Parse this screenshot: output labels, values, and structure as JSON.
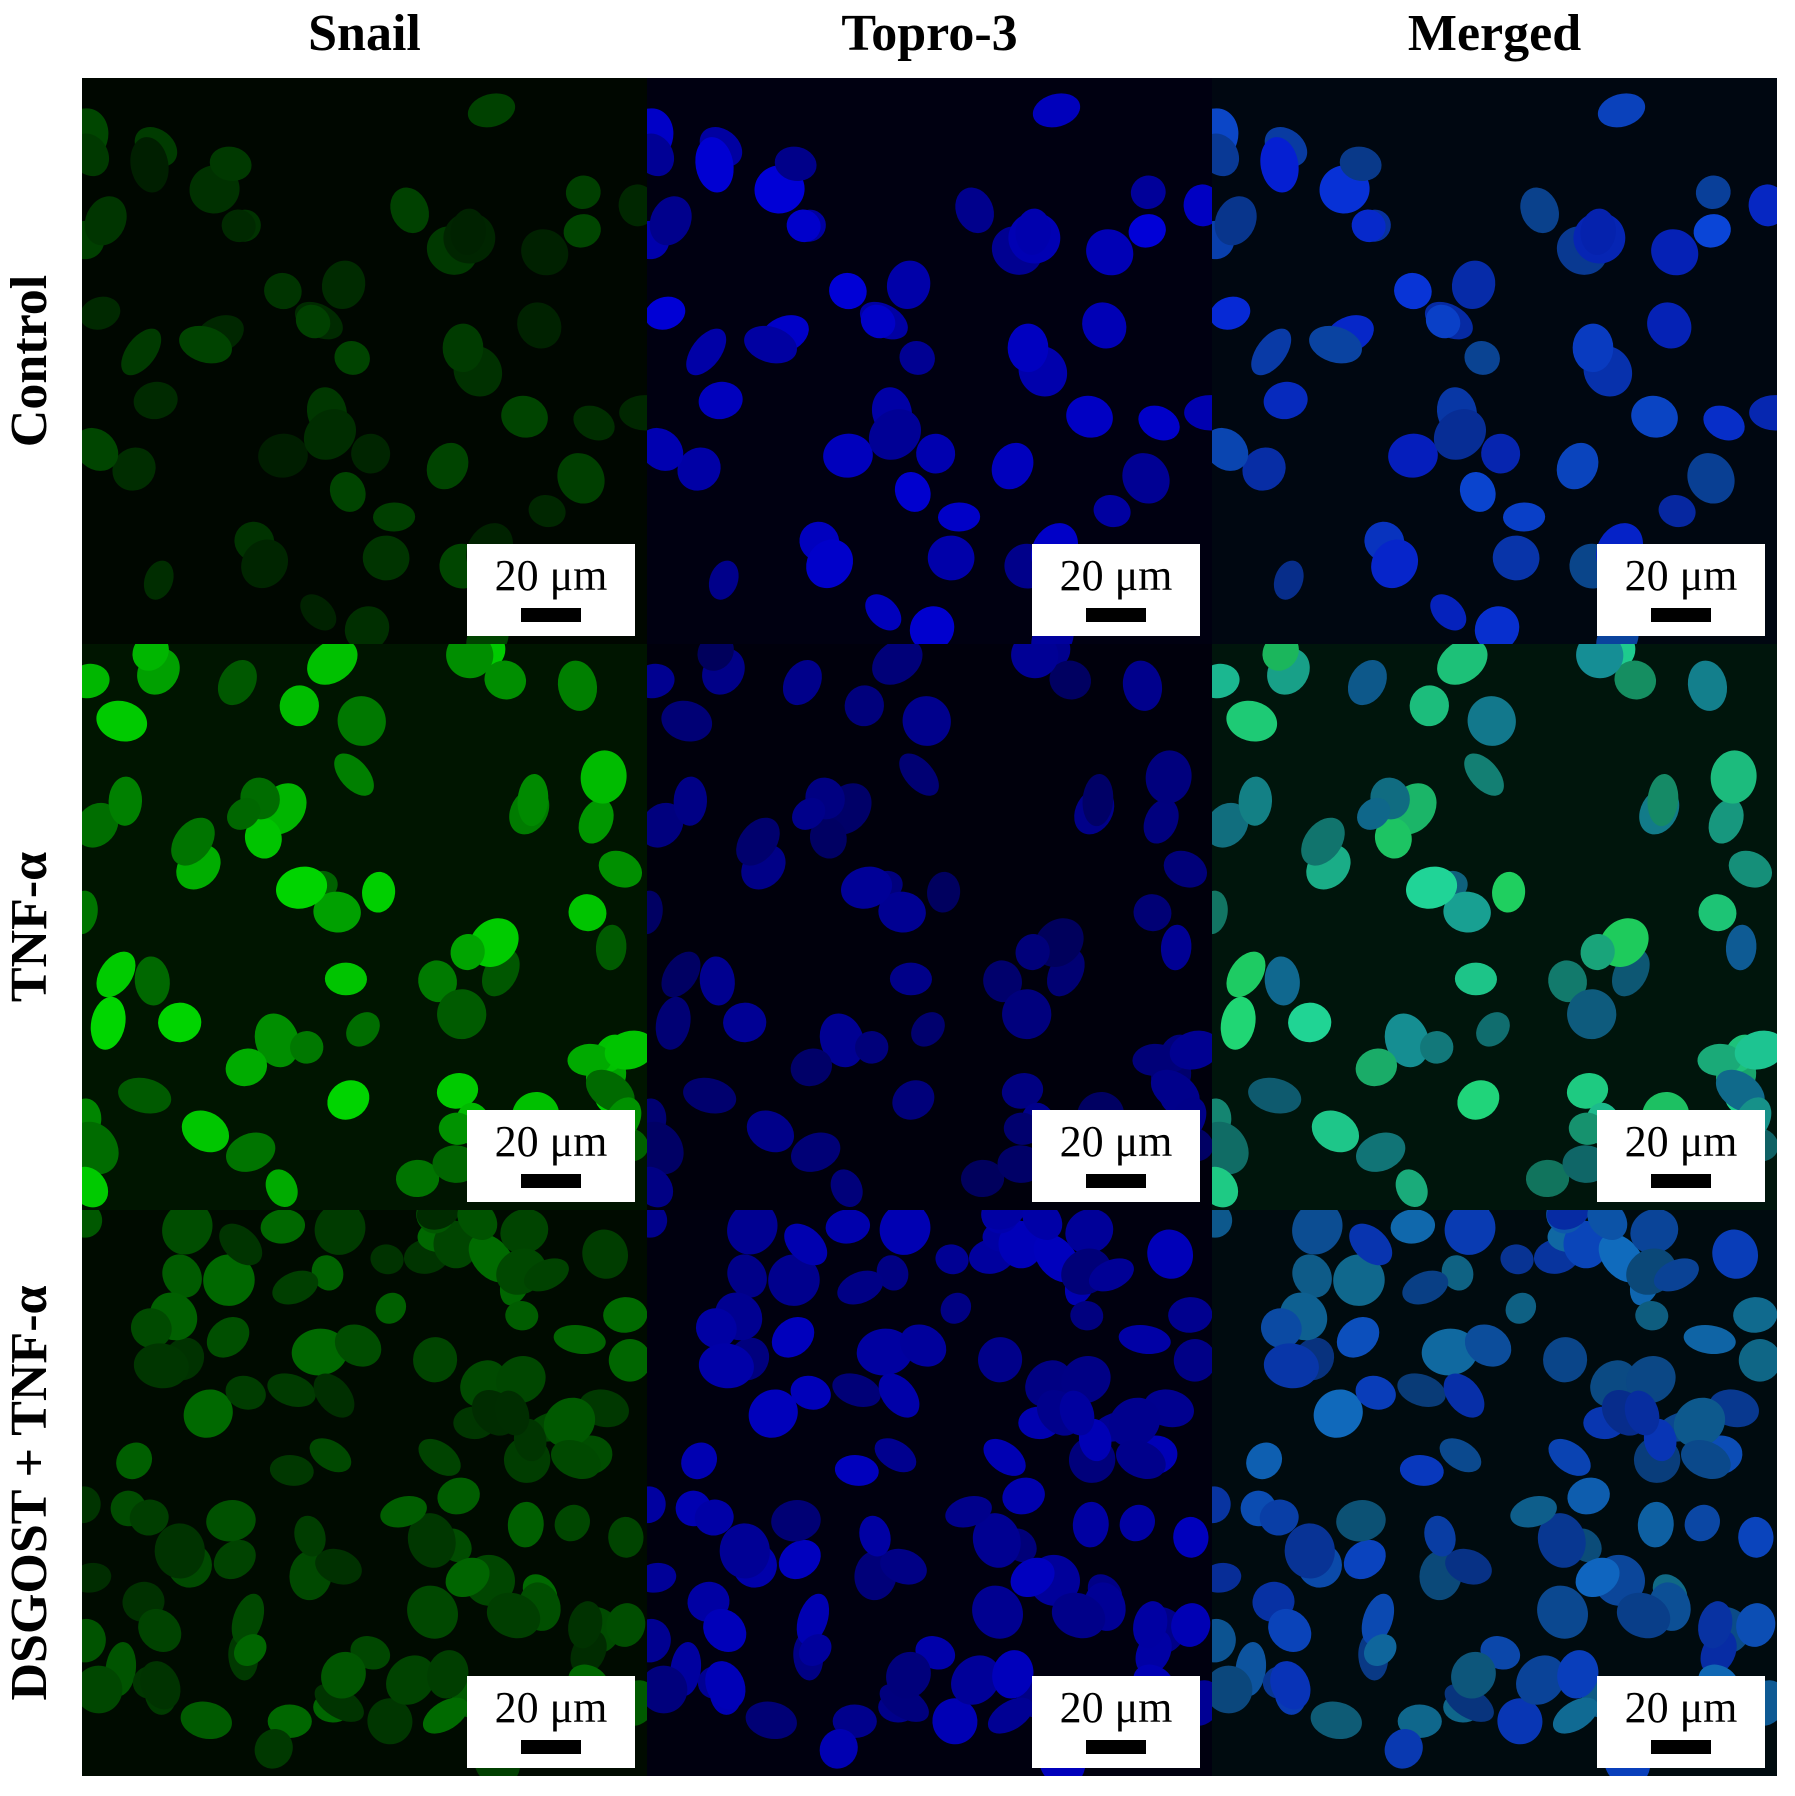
{
  "figure": {
    "columns": [
      "Snail",
      "Topro-3",
      "Merged"
    ],
    "rows": [
      {
        "label": "Control",
        "panels": [
          {
            "scale_bar": "20 μm"
          },
          {
            "scale_bar": "20 μm"
          },
          {
            "scale_bar": "20 μm"
          }
        ]
      },
      {
        "label": "TNF-α",
        "panels": [
          {
            "scale_bar": "20 μm"
          },
          {
            "scale_bar": "20 μm"
          },
          {
            "scale_bar": "20 μm"
          }
        ]
      },
      {
        "label": "DSGOST + TNF-α",
        "panels": [
          {
            "scale_bar": "20 μm"
          },
          {
            "scale_bar": "20 μm"
          },
          {
            "scale_bar": "20 μm"
          }
        ]
      }
    ]
  }
}
